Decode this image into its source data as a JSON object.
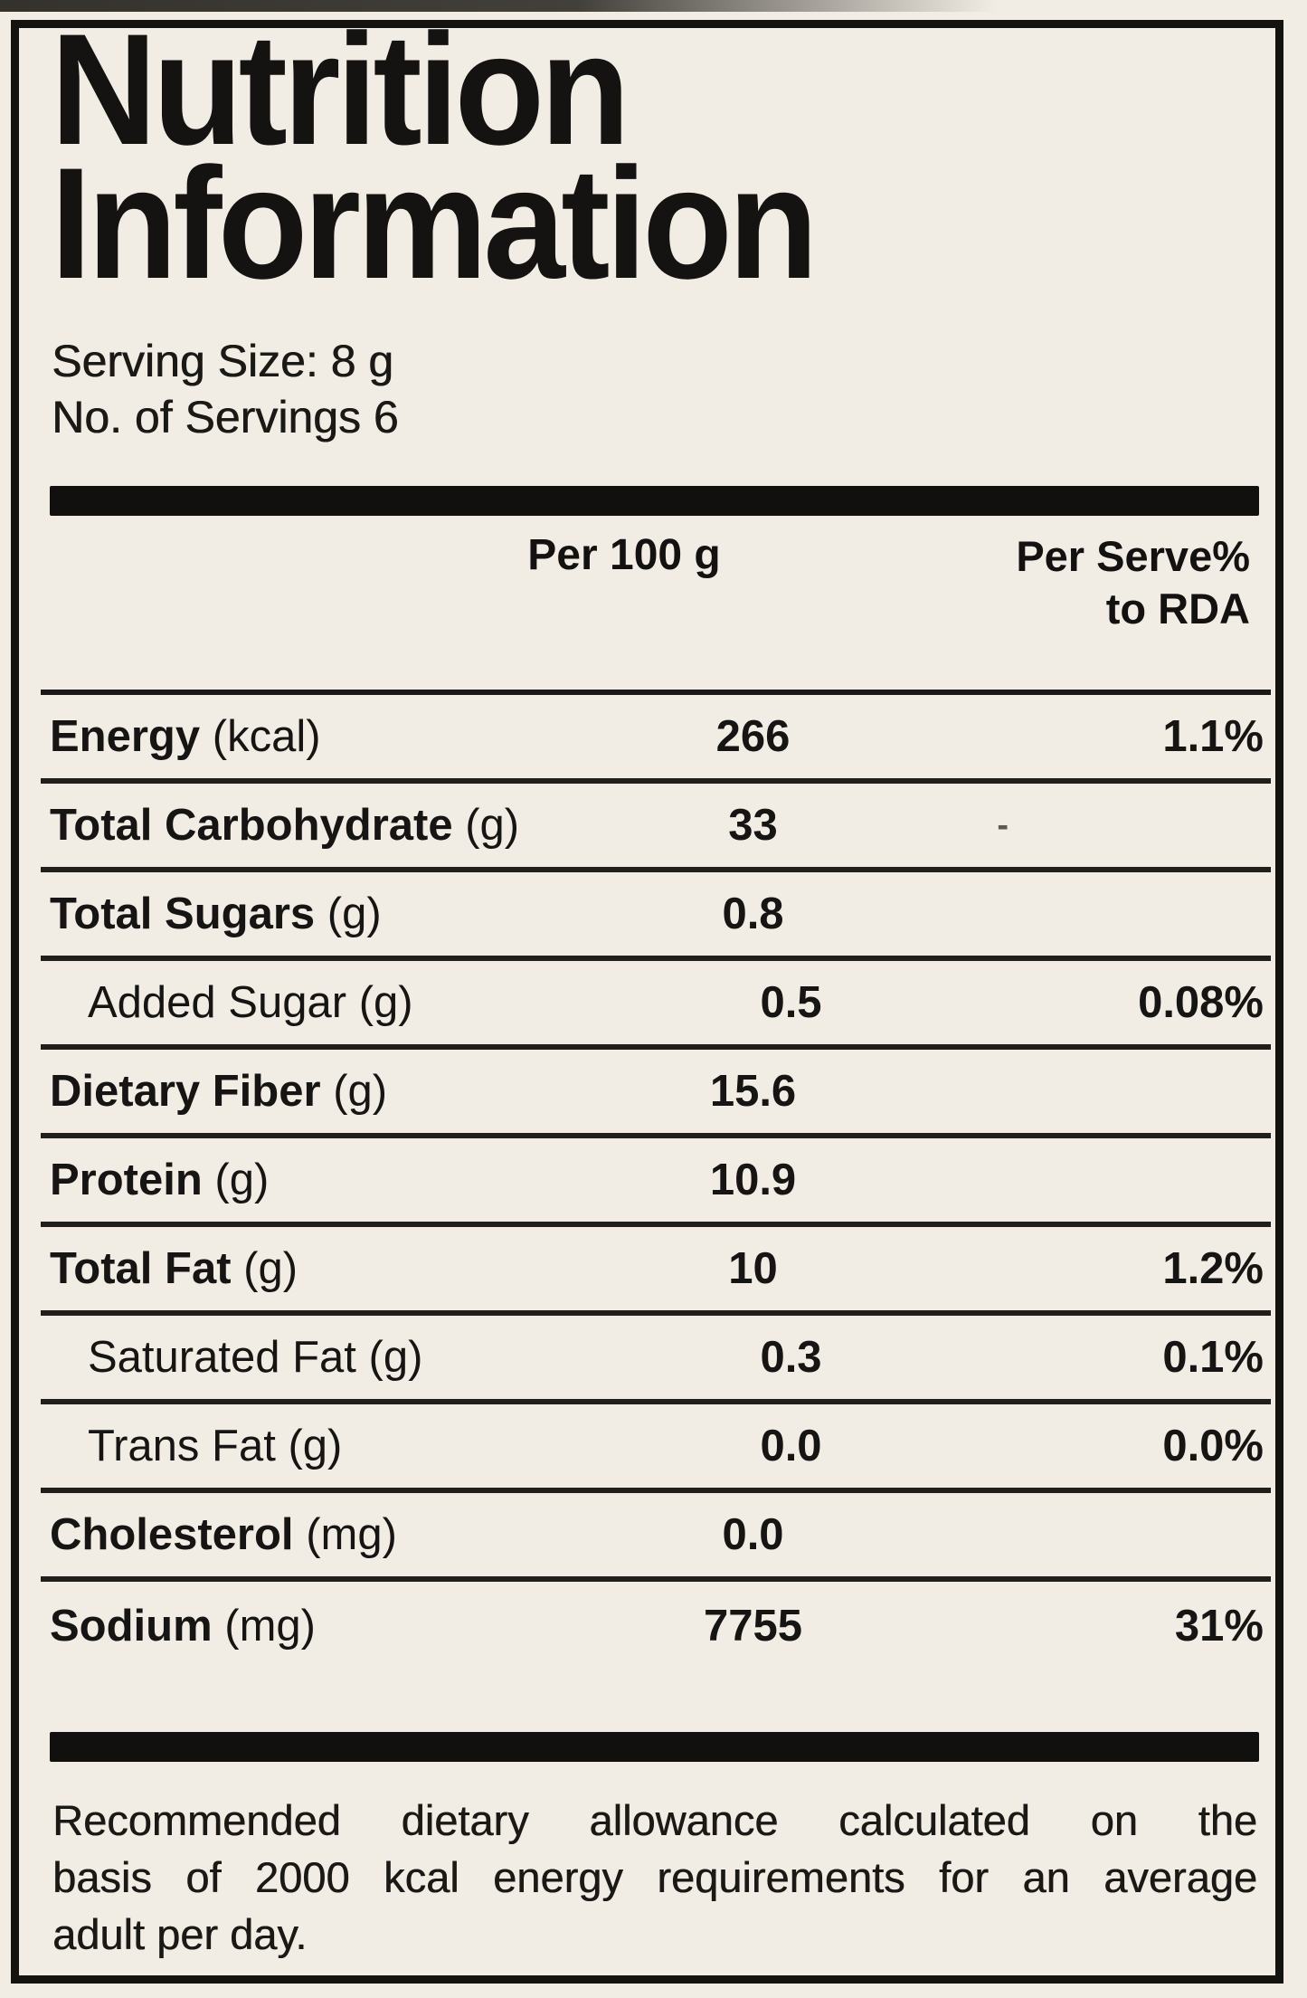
{
  "page": {
    "title_line1": "Nutrition",
    "title_line2": "Information",
    "serving_size": "Serving Size: 8 g",
    "servings_count": "No. of Servings 6",
    "col_per100": "Per 100 g",
    "col_rda_line1": "Per Serve%",
    "col_rda_line2": "to RDA",
    "footnote_lines": [
      "Recommended dietary allowance calculated on the",
      "basis of 2000 kcal energy requirements for an average",
      "adult per day."
    ],
    "colors": {
      "paper": "#f1ece4",
      "ink": "#151311"
    }
  },
  "table": {
    "rows": [
      {
        "name": "Energy",
        "unit": "(kcal)",
        "per100": "266",
        "rda": "1.1%",
        "indent": false,
        "rda_dash": false
      },
      {
        "name": "Total Carbohydrate",
        "unit": "(g)",
        "per100": "33",
        "rda": "-",
        "indent": false,
        "rda_dash": true
      },
      {
        "name": "Total Sugars",
        "unit": "(g)",
        "per100": "0.8",
        "rda": "",
        "indent": false,
        "rda_dash": false
      },
      {
        "name": "Added Sugar",
        "unit": "(g)",
        "per100": "0.5",
        "rda": "0.08%",
        "indent": true,
        "rda_dash": false
      },
      {
        "name": "Dietary Fiber",
        "unit": "(g)",
        "per100": "15.6",
        "rda": "",
        "indent": false,
        "rda_dash": false
      },
      {
        "name": "Protein",
        "unit": "(g)",
        "per100": "10.9",
        "rda": "",
        "indent": false,
        "rda_dash": false
      },
      {
        "name": "Total Fat",
        "unit": "(g)",
        "per100": "10",
        "rda": "1.2%",
        "indent": false,
        "rda_dash": false
      },
      {
        "name": "Saturated Fat",
        "unit": "(g)",
        "per100": "0.3",
        "rda": "0.1%",
        "indent": true,
        "rda_dash": false
      },
      {
        "name": "Trans Fat",
        "unit": "(g)",
        "per100": "0.0",
        "rda": "0.0%",
        "indent": true,
        "rda_dash": false
      },
      {
        "name": "Cholesterol",
        "unit": "(mg)",
        "per100": "0.0",
        "rda": "",
        "indent": false,
        "rda_dash": false
      },
      {
        "name": "Sodium",
        "unit": "(mg)",
        "per100": "7755",
        "rda": "31%",
        "indent": false,
        "rda_dash": false
      }
    ]
  }
}
